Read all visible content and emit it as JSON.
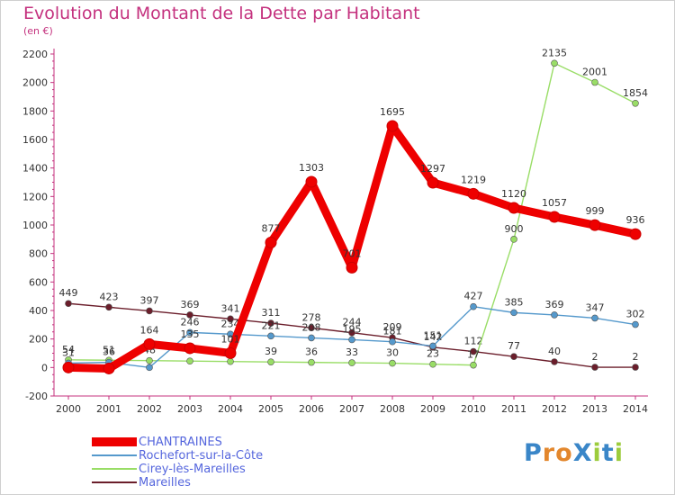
{
  "title": "Evolution du Montant de la Dette par Habitant",
  "unit": "(en €)",
  "brand": "ProXiti",
  "chart_data": {
    "type": "line",
    "categories": [
      "2000",
      "2001",
      "2002",
      "2003",
      "2004",
      "2005",
      "2006",
      "2007",
      "2008",
      "2009",
      "2010",
      "2011",
      "2012",
      "2013",
      "2014"
    ],
    "ylim": [
      -200,
      2200
    ],
    "yticks": [
      -200,
      0,
      200,
      400,
      600,
      800,
      1000,
      1200,
      1400,
      1600,
      1800,
      2000,
      2200
    ],
    "grid": false,
    "legend_position": "bottom-left",
    "series": [
      {
        "name": "Mareilles",
        "color": "#6b1e2b",
        "values": [
          449,
          423,
          397,
          369,
          341,
          311,
          278,
          244,
          209,
          142,
          112,
          77,
          40,
          2,
          2
        ],
        "labels": [
          "449",
          "423",
          "397",
          "369",
          "341",
          "311",
          "278",
          "244",
          "209",
          "142",
          "112",
          "77",
          "40",
          "2",
          "2"
        ]
      },
      {
        "name": "Cirey-lès-Mareilles",
        "color": "#99dd66",
        "values": [
          54,
          51,
          48,
          45,
          42,
          39,
          36,
          33,
          30,
          23,
          17,
          900,
          2135,
          2001,
          1854
        ],
        "labels": [
          "54",
          "51",
          "48",
          "",
          "",
          "39",
          "36",
          "33",
          "30",
          "23",
          "17",
          "900",
          "2135",
          "2001",
          "1854"
        ]
      },
      {
        "name": "Rochefort-sur-la-Côte",
        "color": "#5599cc",
        "values": [
          31,
          36,
          0,
          246,
          234,
          221,
          208,
          195,
          181,
          151,
          427,
          385,
          369,
          347,
          302
        ],
        "labels": [
          "31",
          "36",
          "",
          "246",
          "234",
          "221",
          "208",
          "195",
          "181",
          "151",
          "427",
          "385",
          "369",
          "347",
          "302"
        ]
      },
      {
        "name": "CHANTRAINES",
        "color": "#ee0000",
        "values": [
          0,
          -7,
          164,
          135,
          101,
          877,
          1303,
          701,
          1695,
          1297,
          1219,
          1120,
          1057,
          999,
          936
        ],
        "labels": [
          "",
          "",
          "164",
          "135",
          "101",
          "877",
          "1303",
          "701",
          "1695",
          "1297",
          "1219",
          "1120",
          "1057",
          "999",
          "936"
        ]
      }
    ]
  },
  "legend": [
    {
      "label": "CHANTRAINES",
      "color": "#ee0000",
      "key": "chantraines"
    },
    {
      "label": "Rochefort-sur-la-Côte",
      "color": "#5599cc",
      "key": "rochefort"
    },
    {
      "label": "Cirey-lès-Mareilles",
      "color": "#99dd66",
      "key": "cirey"
    },
    {
      "label": "Mareilles",
      "color": "#6b1e2b",
      "key": "mareilles"
    }
  ]
}
